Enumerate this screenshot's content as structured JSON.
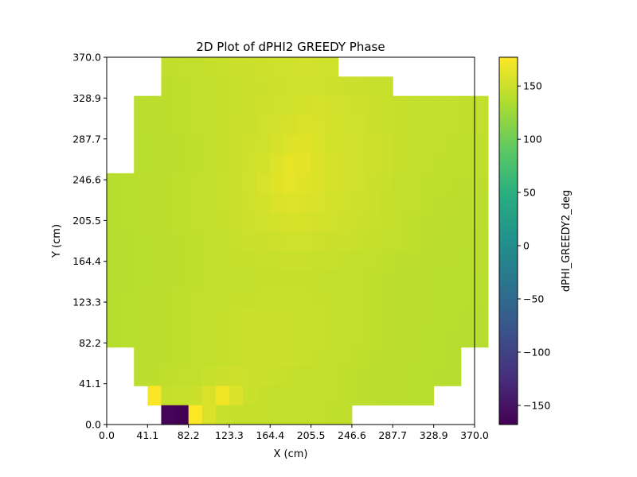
{
  "chart_data": {
    "type": "heatmap",
    "title": "2D Plot of dPHI2 GREEDY Phase",
    "xlabel": "X (cm)",
    "ylabel": "Y (cm)",
    "colorbar_label": "dPHI_GREEDY2_deg",
    "colormap": "viridis",
    "xlim": [
      0.0,
      370.0
    ],
    "ylim": [
      0.0,
      370.0
    ],
    "xticks": [
      "0.0",
      "41.1",
      "82.2",
      "123.3",
      "164.4",
      "205.5",
      "246.6",
      "287.7",
      "328.9",
      "370.0"
    ],
    "yticks": [
      "0.0",
      "41.1",
      "82.2",
      "123.3",
      "164.4",
      "205.5",
      "246.6",
      "287.7",
      "328.9",
      "370.0"
    ],
    "color_range": [
      -168,
      177
    ],
    "colorbar_ticks": [
      "150",
      "100",
      "50",
      "0",
      "−50",
      "−100",
      "−150"
    ],
    "colorbar_tick_values": [
      150,
      100,
      50,
      0,
      -50,
      -100,
      -150
    ],
    "grid": false,
    "rows": [
      [
        null,
        null,
        null,
        null,
        144,
        145,
        146,
        147,
        148,
        149,
        150,
        151,
        152,
        153,
        154,
        153,
        152,
        null,
        null,
        null,
        null,
        null,
        null,
        null,
        null,
        null,
        null
      ],
      [
        null,
        null,
        null,
        null,
        143,
        144,
        145,
        146,
        147,
        148,
        149,
        150,
        151,
        152,
        153,
        152,
        151,
        150,
        149,
        148,
        148,
        null,
        null,
        null,
        null,
        null,
        null
      ],
      [
        null,
        null,
        141,
        142,
        143,
        144,
        145,
        146,
        147,
        148,
        150,
        151,
        152,
        153,
        155,
        156,
        154,
        152,
        151,
        149,
        148,
        147,
        146,
        146,
        145,
        145,
        144,
        145
      ],
      [
        null,
        null,
        141,
        142,
        143,
        144,
        145,
        146,
        147,
        149,
        150,
        152,
        154,
        156,
        158,
        157,
        155,
        153,
        152,
        150,
        148,
        147,
        146,
        146,
        145,
        145,
        144,
        145
      ],
      [
        null,
        null,
        140,
        141,
        142,
        143,
        144,
        146,
        147,
        149,
        151,
        153,
        156,
        160,
        162,
        158,
        155,
        154,
        152,
        151,
        149,
        147,
        146,
        145,
        145,
        144,
        144,
        144
      ],
      [
        null,
        null,
        140,
        141,
        142,
        143,
        144,
        145,
        147,
        149,
        152,
        155,
        160,
        165,
        163,
        159,
        156,
        154,
        152,
        151,
        149,
        147,
        146,
        145,
        144,
        144,
        144,
        144
      ],
      [
        139,
        140,
        141,
        142,
        143,
        144,
        145,
        146,
        148,
        150,
        153,
        157,
        162,
        164,
        162,
        159,
        156,
        154,
        152,
        150,
        148,
        146,
        145,
        144,
        144,
        143,
        143,
        143
      ],
      [
        139,
        140,
        141,
        142,
        143,
        144,
        145,
        146,
        148,
        150,
        152,
        155,
        158,
        160,
        159,
        157,
        155,
        153,
        151,
        149,
        147,
        146,
        145,
        144,
        143,
        143,
        142,
        142
      ],
      [
        139,
        140,
        141,
        142,
        143,
        144,
        145,
        146,
        147,
        149,
        151,
        153,
        155,
        156,
        156,
        155,
        153,
        151,
        150,
        148,
        147,
        145,
        144,
        143,
        143,
        142,
        142,
        142
      ],
      [
        138,
        139,
        140,
        141,
        142,
        143,
        144,
        145,
        146,
        148,
        149,
        150,
        151,
        152,
        152,
        151,
        150,
        149,
        148,
        147,
        146,
        145,
        144,
        143,
        142,
        142,
        141,
        141
      ],
      [
        138,
        139,
        140,
        141,
        142,
        143,
        144,
        145,
        146,
        147,
        147,
        148,
        148,
        149,
        149,
        148,
        148,
        147,
        146,
        145,
        144,
        143,
        143,
        142,
        141,
        141,
        140,
        141
      ],
      [
        138,
        139,
        140,
        141,
        142,
        143,
        144,
        145,
        145,
        146,
        146,
        147,
        147,
        147,
        147,
        147,
        146,
        145,
        145,
        144,
        143,
        142,
        142,
        141,
        140,
        140,
        140,
        140
      ],
      [
        139,
        140,
        141,
        142,
        143,
        144,
        145,
        145,
        146,
        147,
        147,
        148,
        148,
        148,
        148,
        147,
        147,
        146,
        145,
        144,
        143,
        142,
        142,
        141,
        140,
        140,
        140,
        140
      ],
      [
        139,
        140,
        141,
        142,
        143,
        144,
        145,
        146,
        147,
        148,
        149,
        149,
        149,
        149,
        148,
        148,
        147,
        146,
        145,
        144,
        143,
        142,
        142,
        141,
        140,
        140,
        139,
        139
      ],
      [
        139,
        140,
        141,
        142,
        143,
        144,
        145,
        146,
        147,
        148,
        149,
        150,
        150,
        149,
        148,
        148,
        147,
        146,
        145,
        144,
        143,
        142,
        141,
        140,
        140,
        139,
        139,
        139
      ],
      [
        null,
        null,
        141,
        142,
        143,
        144,
        145,
        146,
        147,
        148,
        149,
        150,
        150,
        149,
        148,
        147,
        146,
        145,
        144,
        143,
        142,
        141,
        141,
        140,
        140,
        139,
        null,
        null
      ],
      [
        null,
        null,
        142,
        143,
        144,
        145,
        146,
        148,
        150,
        151,
        150,
        149,
        148,
        147,
        146,
        145,
        145,
        144,
        143,
        142,
        141,
        141,
        140,
        140,
        139,
        139,
        null,
        null
      ],
      [
        null,
        null,
        null,
        175,
        147,
        148,
        150,
        157,
        170,
        158,
        149,
        147,
        146,
        146,
        146,
        145,
        145,
        144,
        143,
        142,
        141,
        141,
        140,
        140,
        null,
        null,
        null,
        null
      ],
      [
        null,
        null,
        null,
        null,
        -165,
        -168,
        176,
        158,
        148,
        147,
        147,
        147,
        146,
        146,
        145,
        145,
        144,
        144,
        null,
        null,
        null,
        null,
        null,
        null,
        null,
        null,
        null,
        null
      ]
    ]
  }
}
